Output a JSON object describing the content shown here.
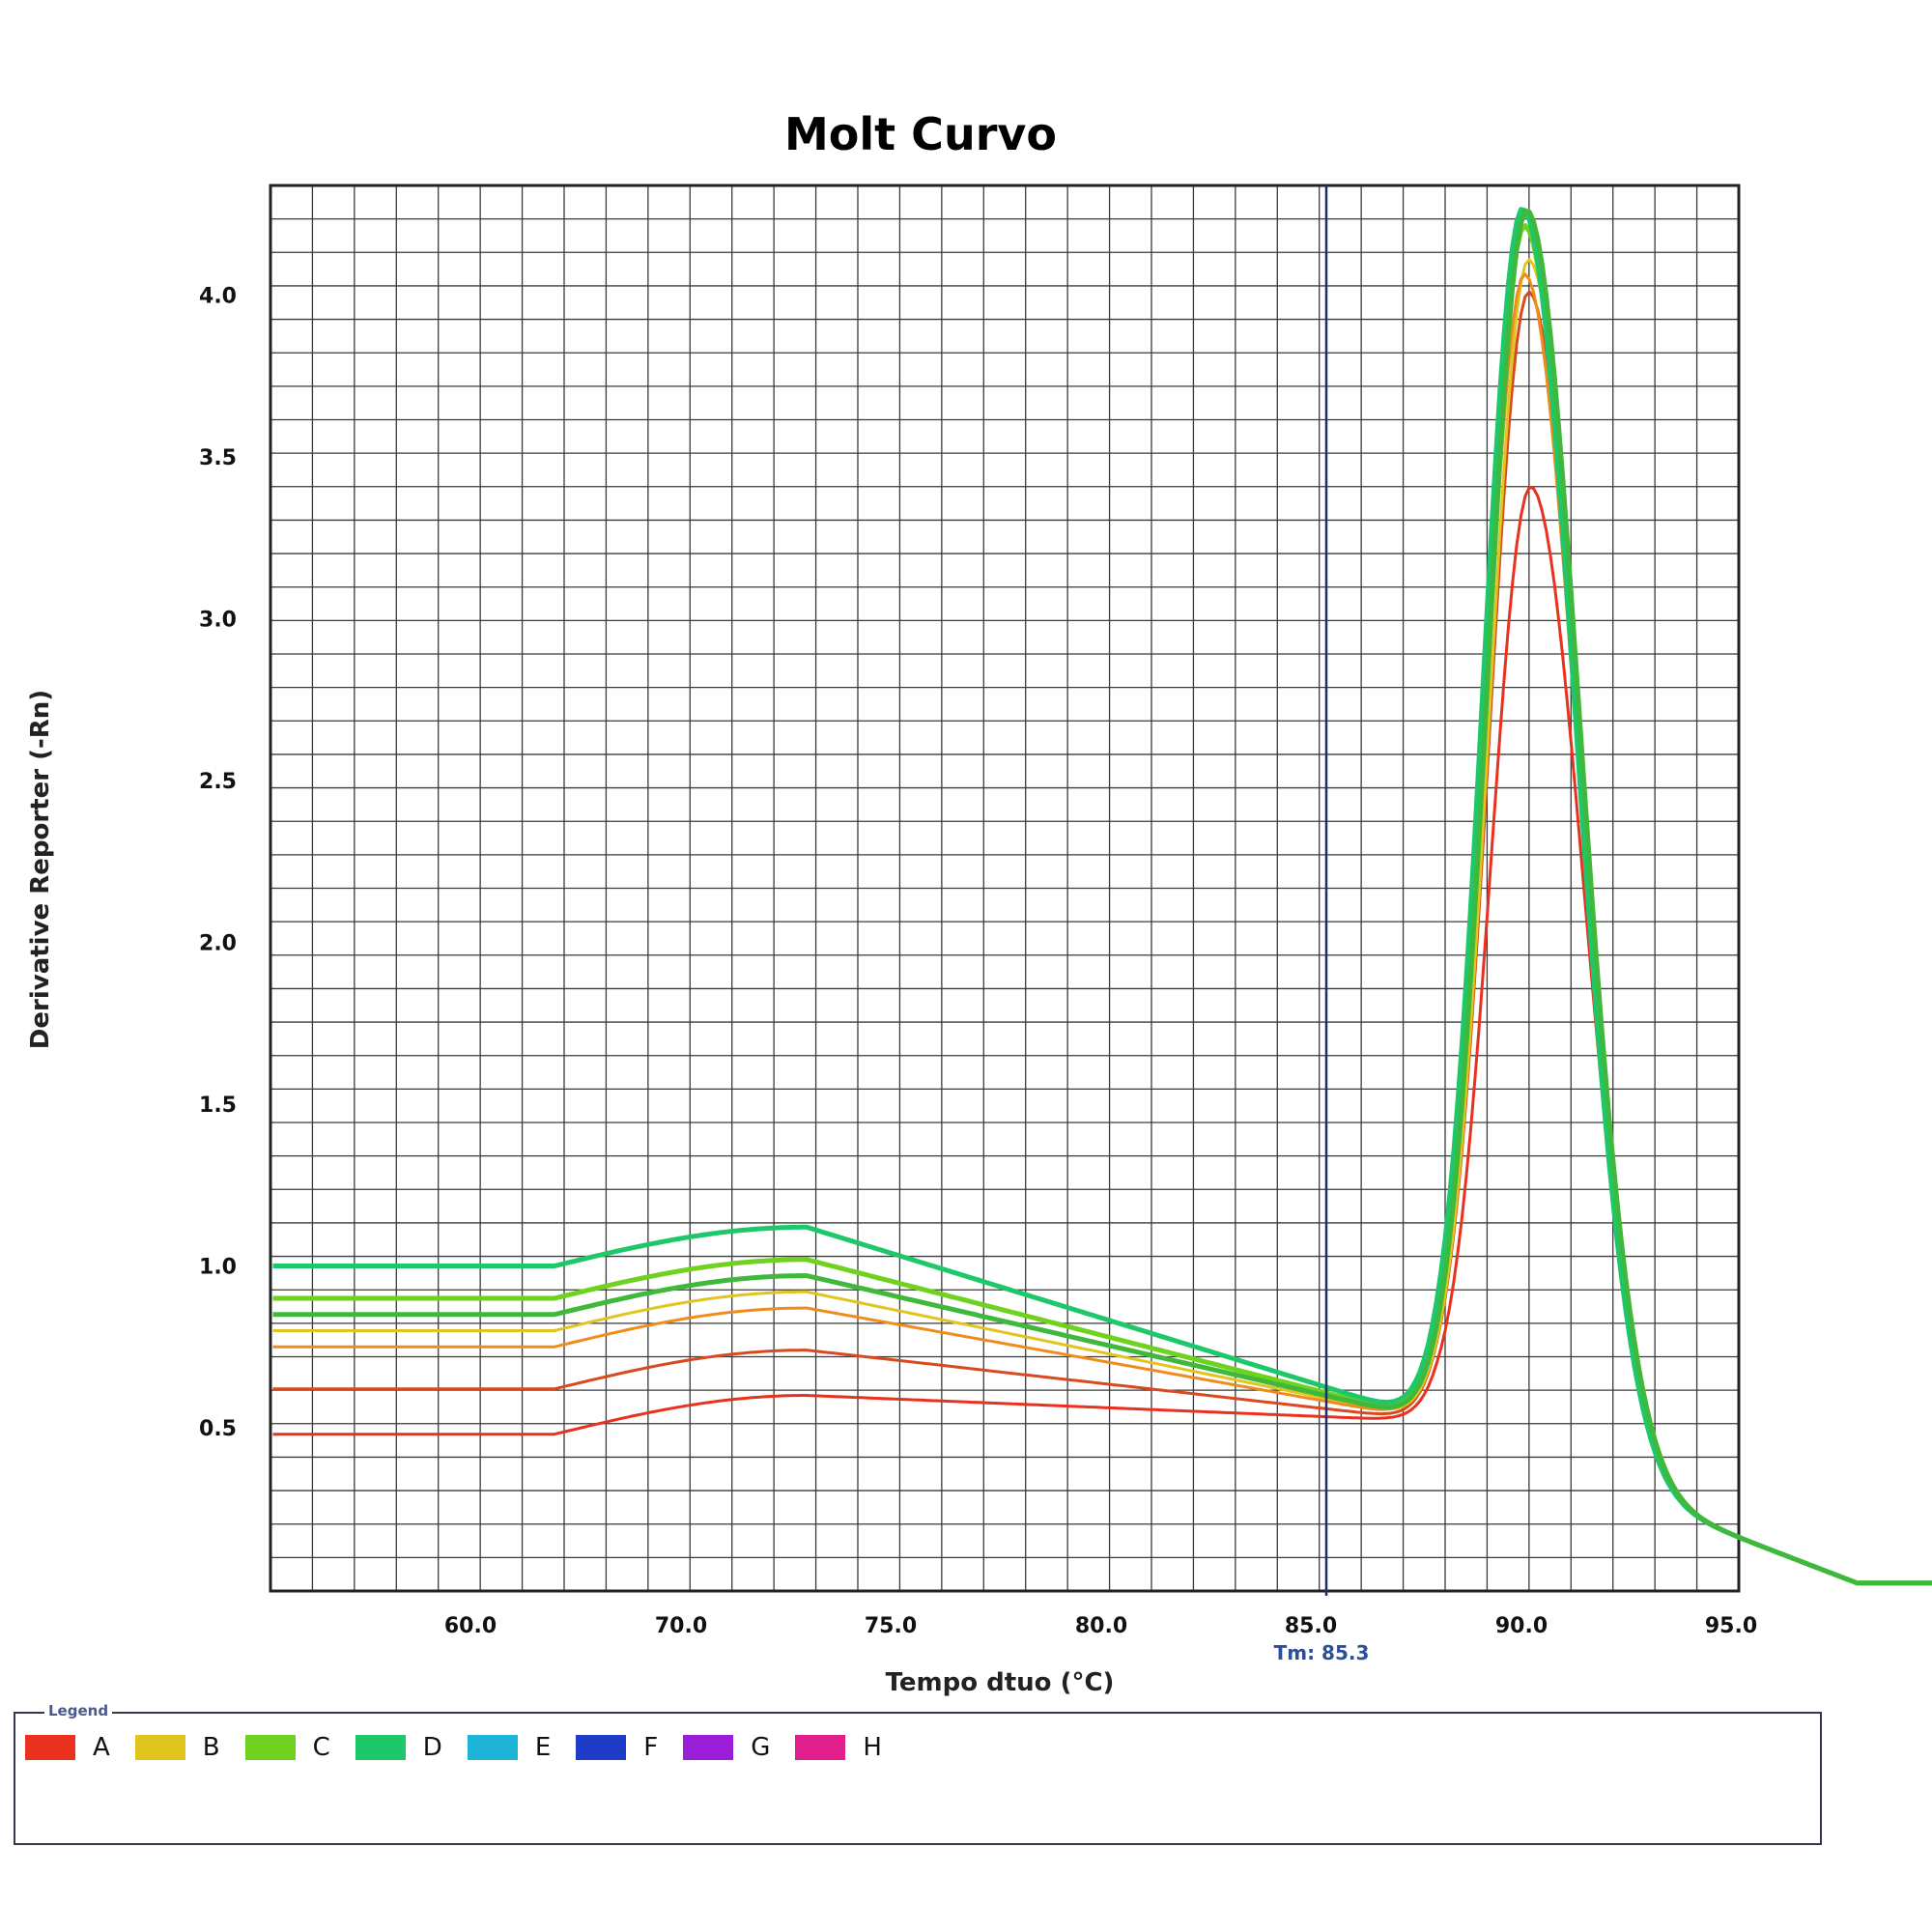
{
  "chart_data": {
    "type": "line",
    "title": "Molt Curvo",
    "xlabel": "Tempo dtuo (°C)",
    "ylabel": "Derivative Reporter (-Rn)",
    "x_ticks": [
      "60.0",
      "70.0",
      "75.0",
      "80.0",
      "85.0",
      "90.0",
      "95.0"
    ],
    "y_ticks": [
      "4.0",
      "3.5",
      "3.0",
      "2.5",
      "2.0",
      "1.5",
      "1.0",
      "0.5"
    ],
    "tm_label": "Tm: 85.3",
    "legend_title": "Legend",
    "legend": [
      {
        "label": "A",
        "color": "#e8321e"
      },
      {
        "label": "B",
        "color": "#e0c51e"
      },
      {
        "label": "C",
        "color": "#6fd21e"
      },
      {
        "label": "D",
        "color": "#1ec86a"
      },
      {
        "label": "E",
        "color": "#1eb4d8"
      },
      {
        "label": "F",
        "color": "#1e3cc8"
      },
      {
        "label": "G",
        "color": "#9a1ed8"
      },
      {
        "label": "H",
        "color": "#e01e8c"
      }
    ],
    "series": [
      {
        "color": "#e8321e",
        "peak": 3.5,
        "base_start": 0.48,
        "shift": 0.15
      },
      {
        "color": "#d84a1e",
        "peak": 4.1,
        "base_start": 0.62,
        "shift": 0.1
      },
      {
        "color": "#e0c51e",
        "peak": 4.2,
        "base_start": 0.8,
        "shift": 0.1
      },
      {
        "color": "#f08c1e",
        "peak": 4.15,
        "base_start": 0.75,
        "shift": 0.0
      },
      {
        "color": "#6fd21e",
        "peak": 4.3,
        "base_start": 0.9,
        "shift": 0.0
      },
      {
        "color": "#1ec86a",
        "peak": 4.35,
        "base_start": 1.0,
        "shift": -0.05
      },
      {
        "color": "#3fb83c",
        "peak": 4.35,
        "base_start": 0.85,
        "shift": 0.05
      }
    ]
  }
}
